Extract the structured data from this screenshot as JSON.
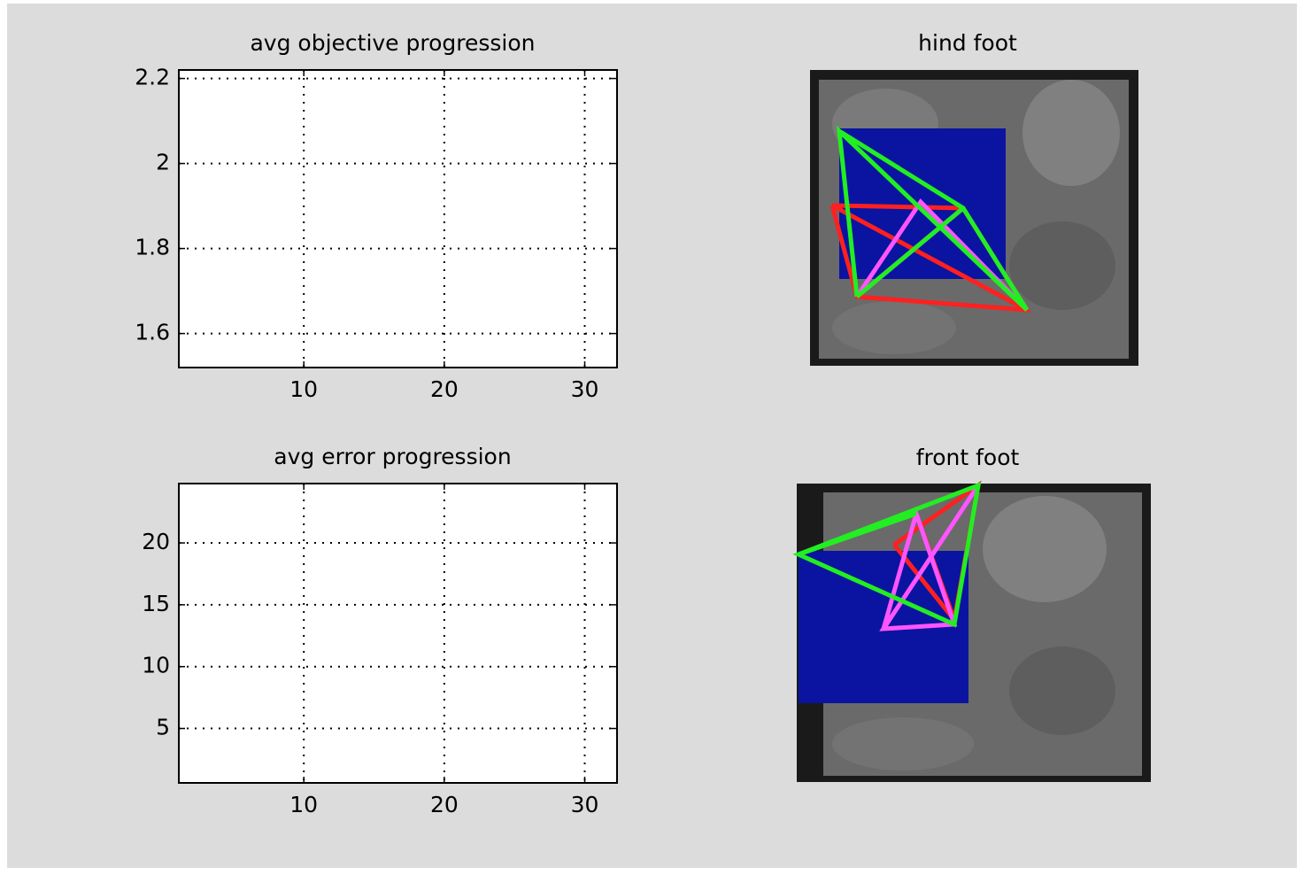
{
  "chart_data": [
    {
      "type": "line",
      "title": "avg objective progression",
      "xlim": [
        1.1,
        32.3
      ],
      "xticks": [
        10,
        20,
        30
      ],
      "ylim": [
        1.52,
        2.22
      ],
      "yticks": [
        1.6,
        1.8,
        2,
        2.2
      ],
      "grid": true
    },
    {
      "type": "line",
      "title": "avg error progression",
      "xlim": [
        1.1,
        32.3
      ],
      "xticks": [
        10,
        20,
        30
      ],
      "ylim": [
        0.6,
        24.8
      ],
      "yticks": [
        5,
        10,
        15,
        20
      ],
      "grid": true
    }
  ],
  "images": [
    {
      "title": "hind foot"
    },
    {
      "title": "front foot"
    }
  ]
}
